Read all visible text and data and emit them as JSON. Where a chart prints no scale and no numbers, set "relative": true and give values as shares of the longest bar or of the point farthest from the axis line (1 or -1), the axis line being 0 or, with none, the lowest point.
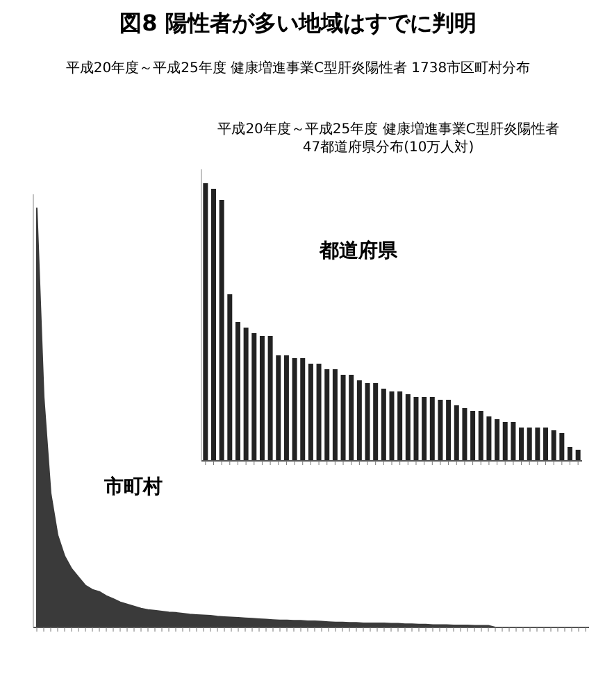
{
  "chart_data": [
    {
      "type": "area",
      "title": "図8 陽性者が多い地域はすでに判明",
      "subtitle": "平成20年度～平成25年度 健康増進事業C型肝炎陽性者 1738市区町村分布",
      "relative": true,
      "annotations": [
        "市町村"
      ],
      "color": "#3a3a3a",
      "categories": [
        null,
        null,
        null,
        null,
        null,
        null,
        null,
        null,
        null,
        null,
        null,
        null,
        null,
        null,
        null,
        null,
        null,
        null,
        null,
        null,
        null,
        null,
        null,
        null,
        null,
        null,
        null,
        null,
        null,
        null,
        null,
        null,
        null,
        null,
        null,
        null,
        null,
        null,
        null,
        null,
        null,
        null,
        null,
        null,
        null,
        null,
        null,
        null,
        null,
        null,
        null,
        null,
        null,
        null,
        null,
        null,
        null,
        null,
        null,
        null,
        null,
        null,
        null,
        null,
        null,
        null,
        null,
        null,
        null,
        null,
        null,
        null,
        null,
        null,
        null,
        null,
        null,
        null,
        null,
        null
      ],
      "values": [
        1,
        0.55,
        0.32,
        0.22,
        0.17,
        0.14,
        0.12,
        0.1,
        0.09,
        0.085,
        0.075,
        0.068,
        0.06,
        0.055,
        0.05,
        0.045,
        0.042,
        0.04,
        0.038,
        0.036,
        0.035,
        0.033,
        0.031,
        0.03,
        0.029,
        0.028,
        0.026,
        0.025,
        0.024,
        0.023,
        0.022,
        0.021,
        0.02,
        0.019,
        0.018,
        0.017,
        0.017,
        0.016,
        0.016,
        0.015,
        0.015,
        0.014,
        0.013,
        0.012,
        0.012,
        0.011,
        0.011,
        0.01,
        0.01,
        0.01,
        0.01,
        0.009,
        0.009,
        0.008,
        0.008,
        0.007,
        0.007,
        0.006,
        0.006,
        0.006,
        0.005,
        0.005,
        0.005,
        0.004,
        0.004,
        0.004,
        0,
        0,
        0,
        0,
        0,
        0,
        0,
        0,
        0,
        0,
        0,
        0,
        0,
        0
      ]
    },
    {
      "type": "bar",
      "title": "平成20年度～平成25年度 健康増進事業C型肝炎陽性者 47都道府県分布(10万人対)",
      "relative": true,
      "annotations": [
        "都道府県"
      ],
      "color": "#222222",
      "categories": [
        null,
        null,
        null,
        null,
        null,
        null,
        null,
        null,
        null,
        null,
        null,
        null,
        null,
        null,
        null,
        null,
        null,
        null,
        null,
        null,
        null,
        null,
        null,
        null,
        null,
        null,
        null,
        null,
        null,
        null,
        null,
        null,
        null,
        null,
        null,
        null,
        null,
        null,
        null,
        null,
        null,
        null,
        null,
        null,
        null,
        null,
        null
      ],
      "values": [
        1,
        0.98,
        0.94,
        0.6,
        0.5,
        0.48,
        0.46,
        0.45,
        0.45,
        0.38,
        0.38,
        0.37,
        0.37,
        0.35,
        0.35,
        0.33,
        0.33,
        0.31,
        0.31,
        0.29,
        0.28,
        0.28,
        0.26,
        0.25,
        0.25,
        0.24,
        0.23,
        0.23,
        0.23,
        0.22,
        0.22,
        0.2,
        0.19,
        0.18,
        0.18,
        0.16,
        0.15,
        0.14,
        0.14,
        0.12,
        0.12,
        0.12,
        0.12,
        0.11,
        0.1,
        0.05,
        0.04
      ]
    }
  ]
}
